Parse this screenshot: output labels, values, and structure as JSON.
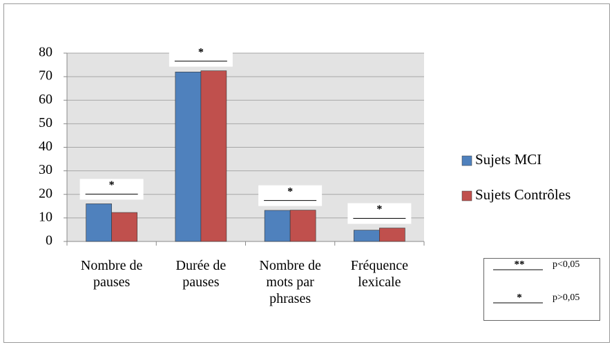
{
  "chart_data": {
    "type": "bar",
    "categories": [
      "Nombre de pauses",
      "Durée de pauses",
      "Nombre de mots par phrases",
      "Fréquence lexicale"
    ],
    "series": [
      {
        "name": "Sujets MCI",
        "color": "#4f81bd",
        "values": [
          16,
          72,
          13.2,
          4.8
        ]
      },
      {
        "name": "Sujets Contrôles",
        "color": "#c0504d",
        "values": [
          12.3,
          72.5,
          13.3,
          5.7
        ]
      }
    ],
    "significance": [
      "*",
      "*",
      "*",
      "*"
    ],
    "key": [
      {
        "symbol": "**",
        "text": "p<0,05"
      },
      {
        "symbol": "*",
        "text": "p>0,05"
      }
    ],
    "ylim": [
      0,
      80
    ],
    "yticks": [
      0,
      10,
      20,
      30,
      40,
      50,
      60,
      70,
      80
    ],
    "grid": true,
    "legend": "right"
  }
}
